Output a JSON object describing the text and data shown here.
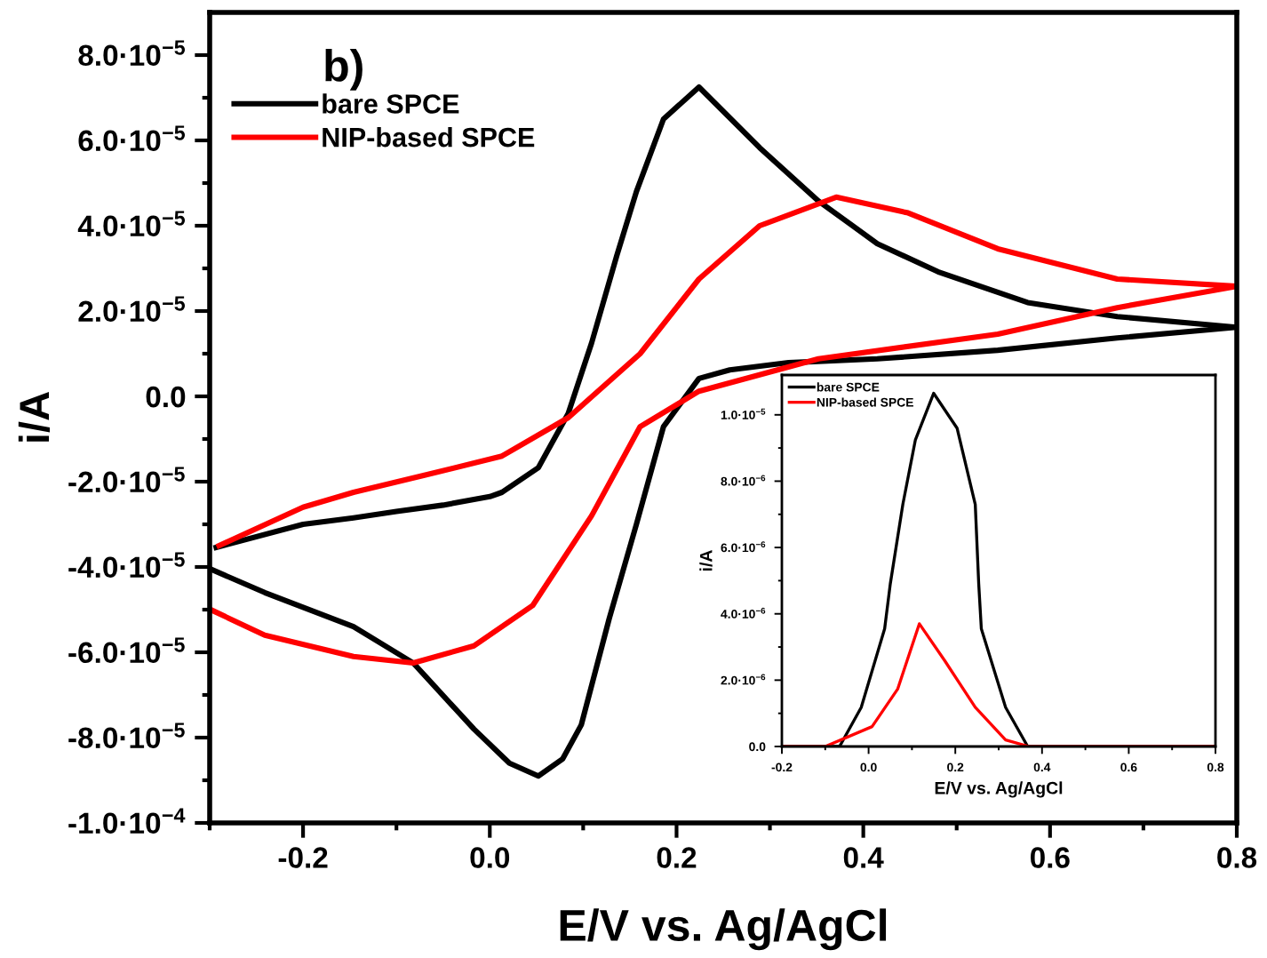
{
  "chart_data": [
    {
      "type": "line",
      "xlabel": "E/V vs. Ag/AgCl",
      "ylabel": "i/A",
      "annotations": [
        "b)"
      ],
      "legend": "top left",
      "line_style": "solid",
      "marker": "none",
      "xlim": [
        -0.3,
        0.8
      ],
      "ylim": [
        -0.0001,
        9e-05
      ],
      "xticks": [
        {
          "value": -0.3,
          "label": null
        },
        -0.2,
        {
          "value": -0.1,
          "label": null
        },
        {
          "value": 0.0,
          "label": "0.0"
        },
        {
          "value": 0.1,
          "label": null
        },
        0.2,
        {
          "value": 0.3,
          "label": null
        },
        0.4,
        {
          "value": 0.5,
          "label": null
        },
        0.6,
        {
          "value": 0.7,
          "label": null
        },
        0.8
      ],
      "yticks": [
        {
          "value": -0.0001,
          "label": "-1.0·10$^{−4}$"
        },
        {
          "value": -9e-05,
          "label": null
        },
        {
          "value": -8e-05,
          "label": "-8.0·10$^{−5}$"
        },
        {
          "value": -7e-05,
          "label": null
        },
        {
          "value": -6e-05,
          "label": "-6.0·10$^{−5}$"
        },
        {
          "value": -5e-05,
          "label": null
        },
        {
          "value": -4e-05,
          "label": "-4.0·10$^{−5}$"
        },
        {
          "value": -3e-05,
          "label": null
        },
        {
          "value": -2e-05,
          "label": "-2.0·10$^{−5}$"
        },
        {
          "value": -1e-05,
          "label": null
        },
        {
          "value": 0.0,
          "label": "0.0"
        },
        {
          "value": 1e-05,
          "label": null
        },
        {
          "value": 2e-05,
          "label": "2.0·10$^{−5}$"
        },
        {
          "value": 3e-05,
          "label": null
        },
        {
          "value": 4e-05,
          "label": "4.0·10$^{−5}$"
        },
        {
          "value": 5e-05,
          "label": null
        },
        {
          "value": 6e-05,
          "label": "6.0·10$^{−5}$"
        },
        {
          "value": 7e-05,
          "label": null
        },
        {
          "value": 8e-05,
          "label": "8.0·10$^{−5}$"
        }
      ],
      "series": [
        {
          "name": "bare SPCE",
          "color": "#000000",
          "x": [
            -0.293,
            -0.2,
            -0.146,
            -0.1,
            -0.05,
            0.0,
            0.013,
            0.052,
            0.084,
            0.109,
            0.136,
            0.157,
            0.186,
            0.224,
            0.289,
            0.352,
            0.415,
            0.48,
            0.576,
            0.672,
            0.8,
            0.672,
            0.544,
            0.415,
            0.32,
            0.257,
            0.224,
            0.186,
            0.157,
            0.128,
            0.098,
            0.078,
            0.052,
            0.021,
            -0.017,
            -0.082,
            -0.146,
            -0.241,
            -0.299
          ],
          "values": [
            -3.54e-05,
            -3e-05,
            -2.85e-05,
            -2.7e-05,
            -2.55e-05,
            -2.35e-05,
            -2.25e-05,
            -1.67e-05,
            -4e-06,
            1.25e-05,
            3.3e-05,
            4.8e-05,
            6.5e-05,
            7.25e-05,
            5.83e-05,
            4.58e-05,
            3.58e-05,
            2.92e-05,
            2.2e-05,
            1.87e-05,
            1.62e-05,
            1.37e-05,
            1.08e-05,
            8.8e-06,
            7.9e-06,
            6.2e-06,
            4.2e-06,
            -7.1e-06,
            -3e-05,
            -5.2e-05,
            -7.7e-05,
            -8.5e-05,
            -8.9e-05,
            -8.6e-05,
            -7.8e-05,
            -6.25e-05,
            -5.4e-05,
            -4.6e-05,
            -4.05e-05
          ]
        },
        {
          "name": "NIP-based SPCE",
          "color": "#ff0000",
          "x": [
            -0.29,
            -0.2,
            -0.146,
            -0.07,
            0.013,
            0.084,
            0.161,
            0.224,
            0.289,
            0.371,
            0.448,
            0.544,
            0.672,
            0.8,
            0.672,
            0.544,
            0.352,
            0.224,
            0.161,
            0.109,
            0.046,
            -0.017,
            -0.082,
            -0.146,
            -0.241,
            -0.299
          ],
          "values": [
            -3.5e-05,
            -2.6e-05,
            -2.25e-05,
            -1.85e-05,
            -1.4e-05,
            -5e-06,
            1e-05,
            2.75e-05,
            4e-05,
            4.67e-05,
            4.3e-05,
            3.46e-05,
            2.75e-05,
            2.58e-05,
            2.08e-05,
            1.46e-05,
            8.8e-06,
            1.2e-06,
            -7.1e-06,
            -2.8e-05,
            -4.9e-05,
            -5.85e-05,
            -6.25e-05,
            -6.1e-05,
            -5.6e-05,
            -5e-05
          ]
        }
      ]
    },
    {
      "type": "line",
      "xlabel": "E/V vs. Ag/AgCl",
      "ylabel": "i/A",
      "legend": "top left",
      "line_style": "solid",
      "marker": "none",
      "xlim": [
        -0.2,
        0.8
      ],
      "ylim": [
        0.0,
        1.12e-05
      ],
      "xticks": [
        -0.2,
        {
          "value": -0.1,
          "label": null
        },
        {
          "value": 0.0,
          "label": "0.0"
        },
        {
          "value": 0.1,
          "label": null
        },
        0.2,
        {
          "value": 0.3,
          "label": null
        },
        0.4,
        {
          "value": 0.5,
          "label": null
        },
        0.6,
        {
          "value": 0.7,
          "label": null
        },
        0.8
      ],
      "yticks": [
        {
          "value": 0.0,
          "label": "0.0"
        },
        {
          "value": 1e-06,
          "label": null
        },
        {
          "value": 2e-06,
          "label": "2.0·10$^{−6}$"
        },
        {
          "value": 3e-06,
          "label": null
        },
        {
          "value": 4e-06,
          "label": "4.0·10$^{−6}$"
        },
        {
          "value": 5e-06,
          "label": null
        },
        {
          "value": 6e-06,
          "label": "6.0·10$^{−6}$"
        },
        {
          "value": 7e-06,
          "label": null
        },
        {
          "value": 8e-06,
          "label": "8.0·10$^{−6}$"
        },
        {
          "value": 9e-06,
          "label": null
        },
        {
          "value": 1e-05,
          "label": "1.0·10$^{−5}$"
        }
      ],
      "series": [
        {
          "name": "bare SPCE",
          "color": "#000000",
          "x": [
            -0.2,
            -0.067,
            -0.017,
            0.037,
            0.05,
            0.079,
            0.108,
            0.15,
            0.204,
            0.246,
            0.254,
            0.26,
            0.316,
            0.367,
            0.8
          ],
          "values": [
            0.0,
            0.0,
            1.18e-06,
            3.55e-06,
            4.9e-06,
            7.3e-06,
            9.25e-06,
            1.065e-05,
            9.6e-06,
            7.3e-06,
            4.9e-06,
            3.55e-06,
            1.18e-06,
            0.0,
            0.0
          ]
        },
        {
          "name": "NIP-based SPCE",
          "color": "#ff0000",
          "x": [
            -0.2,
            -0.1,
            0.008,
            0.067,
            0.117,
            0.175,
            0.246,
            0.316,
            0.37,
            0.8
          ],
          "values": [
            0.0,
            0.0,
            6e-07,
            1.73e-06,
            3.7e-06,
            2.6e-06,
            1.18e-06,
            2e-07,
            0.0,
            0.0
          ]
        }
      ]
    }
  ]
}
